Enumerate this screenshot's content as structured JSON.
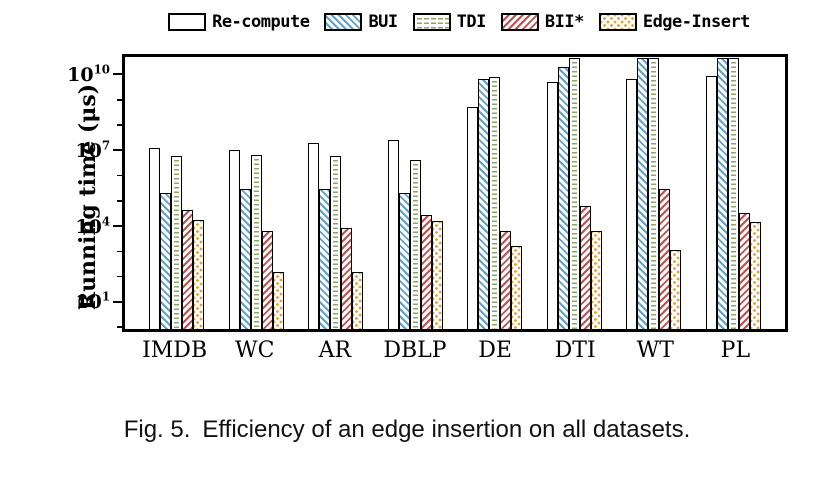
{
  "figure": {
    "caption_label": "Fig. 5.",
    "caption_text": "Efficiency of an edge insertion on all datasets."
  },
  "chart_data": {
    "type": "bar",
    "title": "",
    "xlabel": "",
    "ylabel": "Running time (μs)",
    "yscale": "log",
    "ylim": [
      1,
      60000000000
    ],
    "ylim_log10": [
      -0.2,
      10.8
    ],
    "ytick_exponents": [
      "1",
      "4",
      "7",
      "10"
    ],
    "grid": false,
    "legend_position": "top",
    "categories": [
      "IMDB",
      "WC",
      "AR",
      "DBLP",
      "DE",
      "DTI",
      "WT",
      "PL"
    ],
    "series": [
      {
        "name": "Re-compute",
        "pattern": "recompute",
        "color": "#000000",
        "values": [
          13000000,
          11000000,
          22000000,
          28000000,
          600000000,
          6000000000,
          8000000000,
          11000000000
        ]
      },
      {
        "name": "BUI",
        "pattern": "bui",
        "color": "#5fa2c8",
        "values": [
          200000,
          300000,
          300000,
          200000,
          8000000000,
          25000000000,
          60000000000,
          60000000000
        ]
      },
      {
        "name": "TDI",
        "pattern": "tdi",
        "color": "#8ba768",
        "values": [
          6000000,
          7000000,
          6000000,
          4500000,
          10000000000,
          60000000000,
          60000000000,
          60000000000
        ]
      },
      {
        "name": "BII*",
        "pattern": "bii",
        "color": "#c0504d",
        "values": [
          40000,
          6000,
          8000,
          25000,
          6000,
          60000,
          300000,
          30000
        ]
      },
      {
        "name": "Edge-Insert",
        "pattern": "edge",
        "color": "#e8a33d",
        "values": [
          16000,
          130,
          130,
          15000,
          1500,
          6000,
          1000,
          13000
        ]
      }
    ]
  }
}
